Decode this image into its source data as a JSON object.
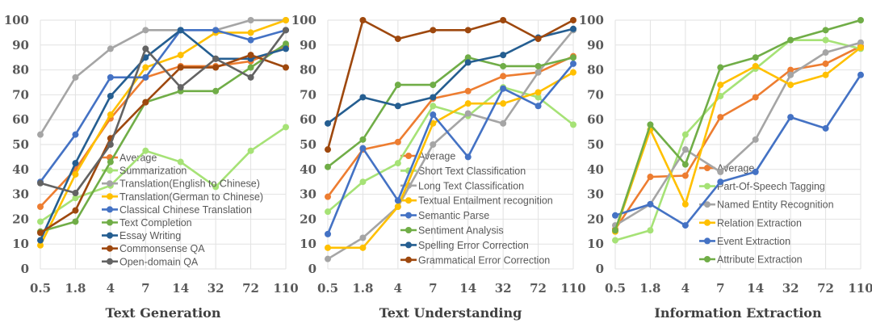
{
  "chart_data": [
    {
      "type": "line",
      "title": "Text Generation",
      "categories": [
        "0.5",
        "1.8",
        "4",
        "7",
        "14",
        "32",
        "72",
        "110"
      ],
      "yticks": [
        0,
        10,
        20,
        30,
        40,
        50,
        60,
        70,
        80,
        90,
        100
      ],
      "ylim": [
        0,
        100
      ],
      "grid": true,
      "legend": "center",
      "series": [
        {
          "name": "Average",
          "color": "#ED7D31",
          "values": [
            25,
            40,
            60.5,
            77,
            81.5,
            81.5,
            83.5,
            89.5
          ]
        },
        {
          "name": "Summarization",
          "color": "#A6E276",
          "values": [
            19,
            28.5,
            33.5,
            47.5,
            43,
            33,
            47.5,
            57
          ]
        },
        {
          "name": "Translation(English to Chinese)",
          "color": "#A5A5A5",
          "values": [
            54,
            77,
            88.5,
            96,
            96,
            96,
            100,
            100
          ]
        },
        {
          "name": "Translation(German to Chinese)",
          "color": "#FFC000",
          "values": [
            9.5,
            38,
            62,
            81,
            86,
            95,
            95,
            100
          ]
        },
        {
          "name": "Classical Chinese Translation",
          "color": "#4472C4",
          "values": [
            35,
            54,
            77,
            77,
            96,
            96,
            92,
            96
          ]
        },
        {
          "name": "Text Completion",
          "color": "#70AD47",
          "values": [
            15,
            19,
            43,
            67,
            71.5,
            71.5,
            81,
            90.5
          ]
        },
        {
          "name": "Essay Writing",
          "color": "#255E91",
          "values": [
            11.5,
            42.5,
            69.5,
            85,
            96,
            84.5,
            84.5,
            88.5
          ]
        },
        {
          "name": "Commonsense QA",
          "color": "#9E480E",
          "values": [
            14.5,
            23.5,
            52.5,
            67,
            81,
            81,
            86,
            81
          ]
        },
        {
          "name": "Open-domain QA",
          "color": "#636363",
          "values": [
            34.5,
            30.5,
            50,
            88.5,
            73,
            84.5,
            77,
            96
          ]
        }
      ]
    },
    {
      "type": "line",
      "title": "Text Understanding",
      "categories": [
        "0.5",
        "1.8",
        "4",
        "7",
        "14",
        "32",
        "72",
        "110"
      ],
      "yticks": [
        0,
        10,
        20,
        30,
        40,
        50,
        60,
        70,
        80,
        90,
        100
      ],
      "ylim": [
        0,
        100
      ],
      "grid": true,
      "legend": "center",
      "series": [
        {
          "name": "Average",
          "color": "#ED7D31",
          "values": [
            29,
            48,
            51,
            68.5,
            71.5,
            77.5,
            79,
            85.5
          ]
        },
        {
          "name": "Short Text Classification",
          "color": "#A6E276",
          "values": [
            23,
            35,
            42.5,
            65.5,
            61.5,
            73,
            69,
            58
          ]
        },
        {
          "name": "Long Text Classification",
          "color": "#A5A5A5",
          "values": [
            4,
            12.5,
            25,
            50,
            62.5,
            58.5,
            79,
            96
          ]
        },
        {
          "name": "Textual Entailment recognition",
          "color": "#FFC000",
          "values": [
            8.5,
            8.5,
            25,
            58.5,
            66.5,
            66.5,
            71,
            79
          ]
        },
        {
          "name": "Semantic Parse",
          "color": "#4472C4",
          "values": [
            14,
            48.5,
            27.5,
            62,
            45,
            72.5,
            65.5,
            82.5
          ]
        },
        {
          "name": "Sentiment Analysis",
          "color": "#70AD47",
          "values": [
            41,
            52,
            74,
            74,
            85,
            81.5,
            81.5,
            85
          ]
        },
        {
          "name": "Spelling Error Correction",
          "color": "#255E91",
          "values": [
            58.5,
            69,
            65.5,
            69,
            83,
            86,
            93,
            96.5
          ]
        },
        {
          "name": "Grammatical Error Correction",
          "color": "#9E480E",
          "values": [
            48,
            100,
            92.5,
            96,
            96,
            100,
            92.5,
            100
          ]
        }
      ]
    },
    {
      "type": "line",
      "title": "Information Extraction",
      "categories": [
        "0.5",
        "1.8",
        "4",
        "7",
        "14",
        "32",
        "72",
        "110"
      ],
      "yticks": [
        0,
        10,
        20,
        30,
        40,
        50,
        60,
        70,
        80,
        90,
        100
      ],
      "ylim": [
        0,
        100
      ],
      "grid": true,
      "legend": "bottom-right",
      "series": [
        {
          "name": "Average",
          "color": "#ED7D31",
          "values": [
            16,
            37,
            37.5,
            61,
            69,
            80,
            82.5,
            89.5
          ]
        },
        {
          "name": "Part-Of-Speech Tagging",
          "color": "#A6E276",
          "values": [
            11.5,
            15.5,
            54,
            69.5,
            80.5,
            92,
            92,
            88.5
          ]
        },
        {
          "name": "Named Entity Recognition",
          "color": "#A5A5A5",
          "values": [
            17.5,
            26,
            48,
            39,
            52,
            78,
            87,
            91
          ]
        },
        {
          "name": "Relation Extraction",
          "color": "#FFC000",
          "values": [
            15,
            56,
            26,
            74,
            81.5,
            74,
            78,
            89
          ]
        },
        {
          "name": "Event Extraction",
          "color": "#4472C4",
          "values": [
            21.5,
            26,
            17.5,
            35,
            39,
            61,
            56.5,
            78
          ]
        },
        {
          "name": "Attribute Extraction",
          "color": "#70AD47",
          "values": [
            15.5,
            58,
            42,
            81,
            85,
            92,
            96,
            100
          ]
        }
      ]
    }
  ]
}
